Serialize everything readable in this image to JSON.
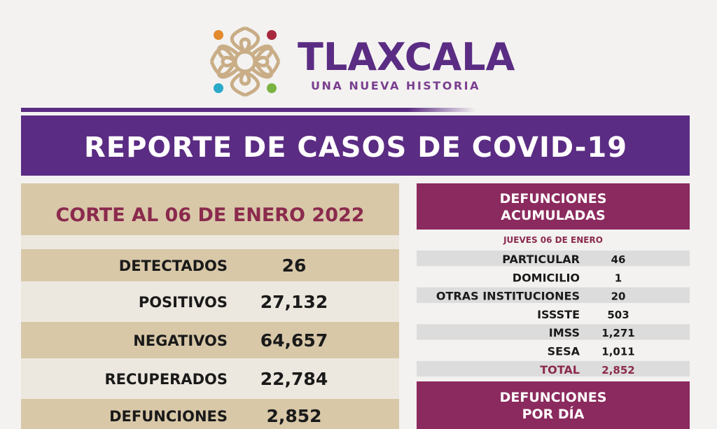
{
  "header": {
    "title": "TLAXCALA",
    "subtitle": "UNA NUEVA HISTORIA"
  },
  "banner": {
    "title": "REPORTE DE CASOS DE COVID-19"
  },
  "cases": {
    "heading": "CORTE AL 06 DE ENERO 2022",
    "rows": [
      {
        "label": "DETECTADOS",
        "value": "26"
      },
      {
        "label": "POSITIVOS",
        "value": "27,132"
      },
      {
        "label": "NEGATIVOS",
        "value": "64,657"
      },
      {
        "label": "RECUPERADOS",
        "value": "22,784"
      },
      {
        "label": "DEFUNCIONES",
        "value": "2,852"
      }
    ]
  },
  "deaths": {
    "heading": [
      "DEFUNCIONES",
      "ACUMULADAS"
    ],
    "date": "JUEVES 06 DE ENERO",
    "rows": [
      {
        "label": "PARTICULAR",
        "value": "46"
      },
      {
        "label": "DOMICILIO",
        "value": "1"
      },
      {
        "label": "OTRAS INSTITUCIONES",
        "value": "20"
      },
      {
        "label": "ISSSTE",
        "value": "503"
      },
      {
        "label": "IMSS",
        "value": "1,271"
      },
      {
        "label": "SESA",
        "value": "1,011"
      }
    ],
    "total": {
      "label": "TOTAL",
      "value": "2,852"
    }
  },
  "daily": {
    "heading": [
      "DEFUNCIONES",
      "POR DÍA"
    ]
  }
}
